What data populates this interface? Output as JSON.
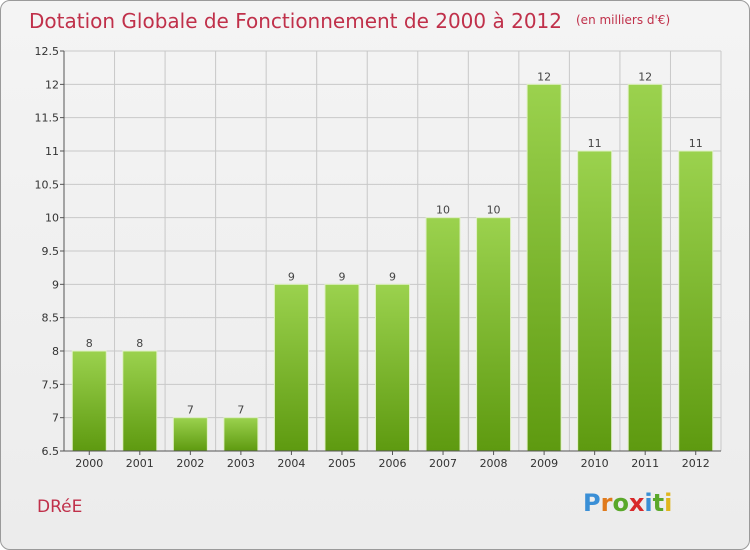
{
  "header": {
    "title": "Dotation Globale de Fonctionnement de 2000 à 2012",
    "unit": "(en milliers d'€)"
  },
  "footer": {
    "commune": "DRéE",
    "brand": "Proxiti"
  },
  "colors": {
    "title": "#c0304a",
    "bar_top": "#9bd24e",
    "bar_bottom": "#5e9a10",
    "grid": "#c8c8c8"
  },
  "chart_data": {
    "type": "bar",
    "title": "Dotation Globale de Fonctionnement de 2000 à 2012",
    "xlabel": "",
    "ylabel": "",
    "categories": [
      "2000",
      "2001",
      "2002",
      "2003",
      "2004",
      "2005",
      "2006",
      "2007",
      "2008",
      "2009",
      "2010",
      "2011",
      "2012"
    ],
    "values": [
      8,
      8,
      7,
      7,
      9,
      9,
      9,
      10,
      10,
      12,
      11,
      12,
      11
    ],
    "data_labels": [
      "8",
      "8",
      "7",
      "7",
      "9",
      "9",
      "9",
      "10",
      "10",
      "12",
      "11",
      "12",
      "11"
    ],
    "ylim": [
      6.5,
      12.5
    ],
    "yticks": [
      6.5,
      7,
      7.5,
      8,
      8.5,
      9,
      9.5,
      10,
      10.5,
      11,
      11.5,
      12,
      12.5
    ],
    "ytick_labels": [
      "6.5",
      "7",
      "7.5",
      "8",
      "8.5",
      "9",
      "9.5",
      "10",
      "10.5",
      "11",
      "11.5",
      "12",
      "12.5"
    ],
    "grid": true,
    "legend": "none"
  }
}
